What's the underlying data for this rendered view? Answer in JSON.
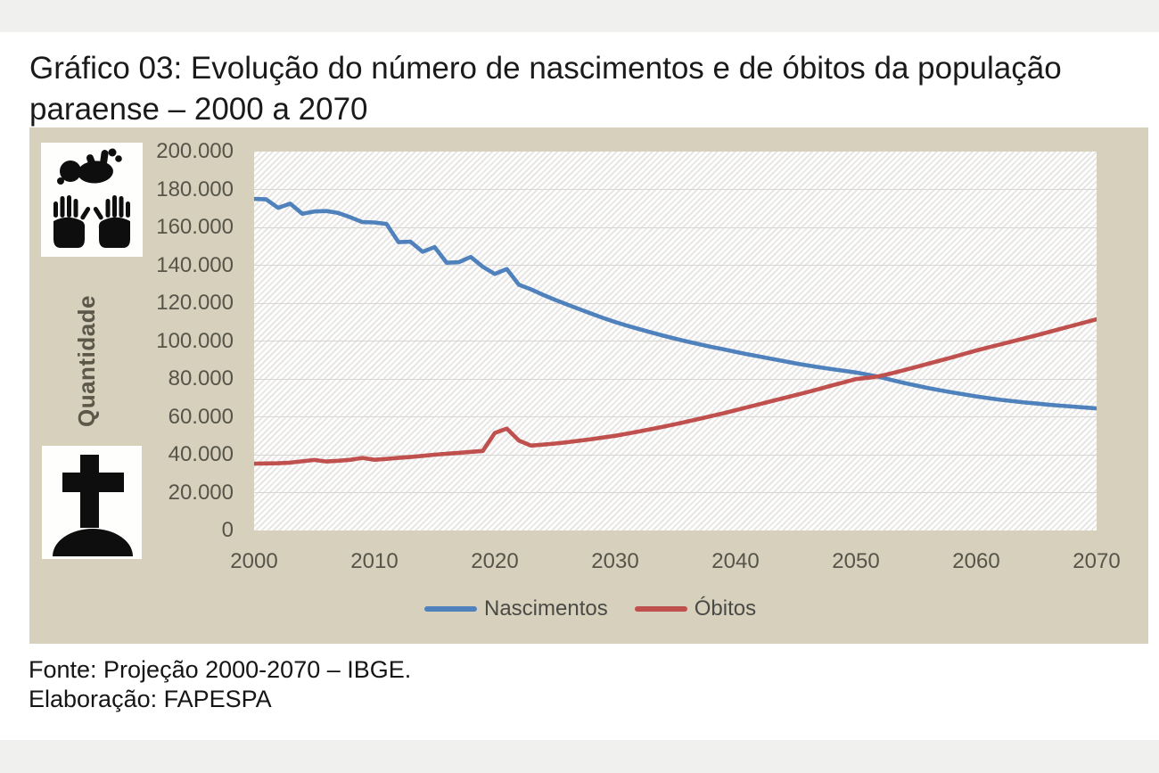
{
  "page": {
    "title_line1": "Gráfico 03: Evolução do número de nascimentos e de óbitos da população",
    "title_line2": "paraense – 2000 a 2070",
    "source_line": "Fonte: Projeção 2000-2070 – IBGE.",
    "elaboration_line": "Elaboração: FAPESPA"
  },
  "chart": {
    "ylabel": "Quantidade",
    "background_color": "#d6d0bc",
    "icons": {
      "top": "baby-in-hands-icon",
      "bottom": "tombstone-icon"
    }
  },
  "chart_data": {
    "type": "line",
    "title": "Evolução do número de nascimentos e de óbitos da população paraense – 2000 a 2070",
    "xlabel": "",
    "ylabel": "Quantidade",
    "ylim": [
      0,
      200000
    ],
    "ytick_step": 20000,
    "ytick_labels": [
      "0",
      "20.000",
      "40.000",
      "60.000",
      "80.000",
      "100.000",
      "120.000",
      "140.000",
      "160.000",
      "180.000",
      "200.000"
    ],
    "xticks": [
      2000,
      2010,
      2020,
      2030,
      2040,
      2050,
      2060,
      2070
    ],
    "grid": true,
    "legend_position": "bottom",
    "x_range": [
      2000,
      2070
    ],
    "series": [
      {
        "name": "Nascimentos",
        "color": "#4f81bd",
        "values": [
          175000,
          174800,
          170300,
          172500,
          167200,
          168400,
          168600,
          167600,
          165300,
          162800,
          162600,
          161800,
          152200,
          152400,
          147100,
          149600,
          141300,
          141600,
          144400,
          139200,
          135400,
          138000,
          129700,
          127300,
          124400,
          121800,
          119300,
          116900,
          114500,
          112200,
          110000,
          108100,
          106300,
          104500,
          102800,
          101200,
          99700,
          98300,
          96900,
          95600,
          94300,
          93000,
          91800,
          90600,
          89400,
          88200,
          87100,
          86100,
          85200,
          84300,
          83400,
          82200,
          81000,
          79400,
          77900,
          76500,
          75200,
          74000,
          72900,
          71800,
          70800,
          69900,
          69000,
          68300,
          67600,
          67000,
          66400,
          65900,
          65400,
          64900,
          64400
        ]
      },
      {
        "name": "Óbitos",
        "color": "#c0504d",
        "values": [
          35300,
          35400,
          35500,
          35800,
          36500,
          37200,
          36400,
          36800,
          37300,
          38300,
          37300,
          37800,
          38300,
          38800,
          39400,
          40000,
          40500,
          41000,
          41500,
          42000,
          51500,
          53800,
          47500,
          44800,
          45300,
          45900,
          46600,
          47400,
          48200,
          49100,
          50000,
          51100,
          52300,
          53500,
          54800,
          56100,
          57500,
          58900,
          60400,
          61900,
          63500,
          65100,
          66700,
          68300,
          69900,
          71500,
          73100,
          74800,
          76500,
          78200,
          79900,
          80600,
          81500,
          83000,
          84600,
          86300,
          88000,
          89700,
          91400,
          93200,
          95000,
          96600,
          98200,
          99800,
          101400,
          103000,
          104700,
          106400,
          108100,
          109800,
          111500
        ]
      }
    ]
  }
}
